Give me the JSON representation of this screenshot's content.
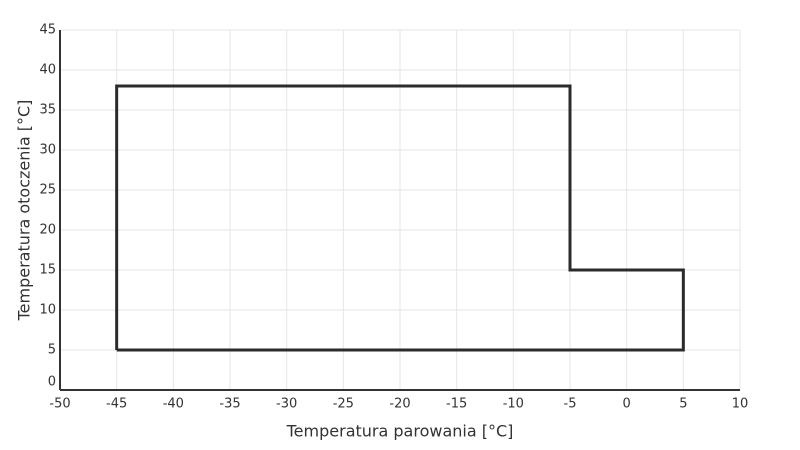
{
  "chart_data": {
    "type": "line",
    "xlabel": "Temperatura parowania [°C]",
    "ylabel": "Temperatura otoczenia [°C]",
    "series": [
      {
        "color": "#2b2b2b",
        "x": [
          -45,
          -45,
          -5,
          -5,
          5,
          5,
          -45
        ],
        "values": [
          5,
          38,
          38,
          15,
          15,
          5,
          5
        ]
      }
    ],
    "xlim": [
      -50,
      10
    ],
    "xticks": [
      -50,
      -45,
      -40,
      -35,
      -30,
      -25,
      -20,
      -15,
      -10,
      -5,
      0,
      5,
      10
    ],
    "ylim": [
      0,
      45
    ],
    "yticks": [
      0,
      5,
      10,
      15,
      20,
      25,
      30,
      35,
      40,
      45
    ],
    "grid": true
  }
}
